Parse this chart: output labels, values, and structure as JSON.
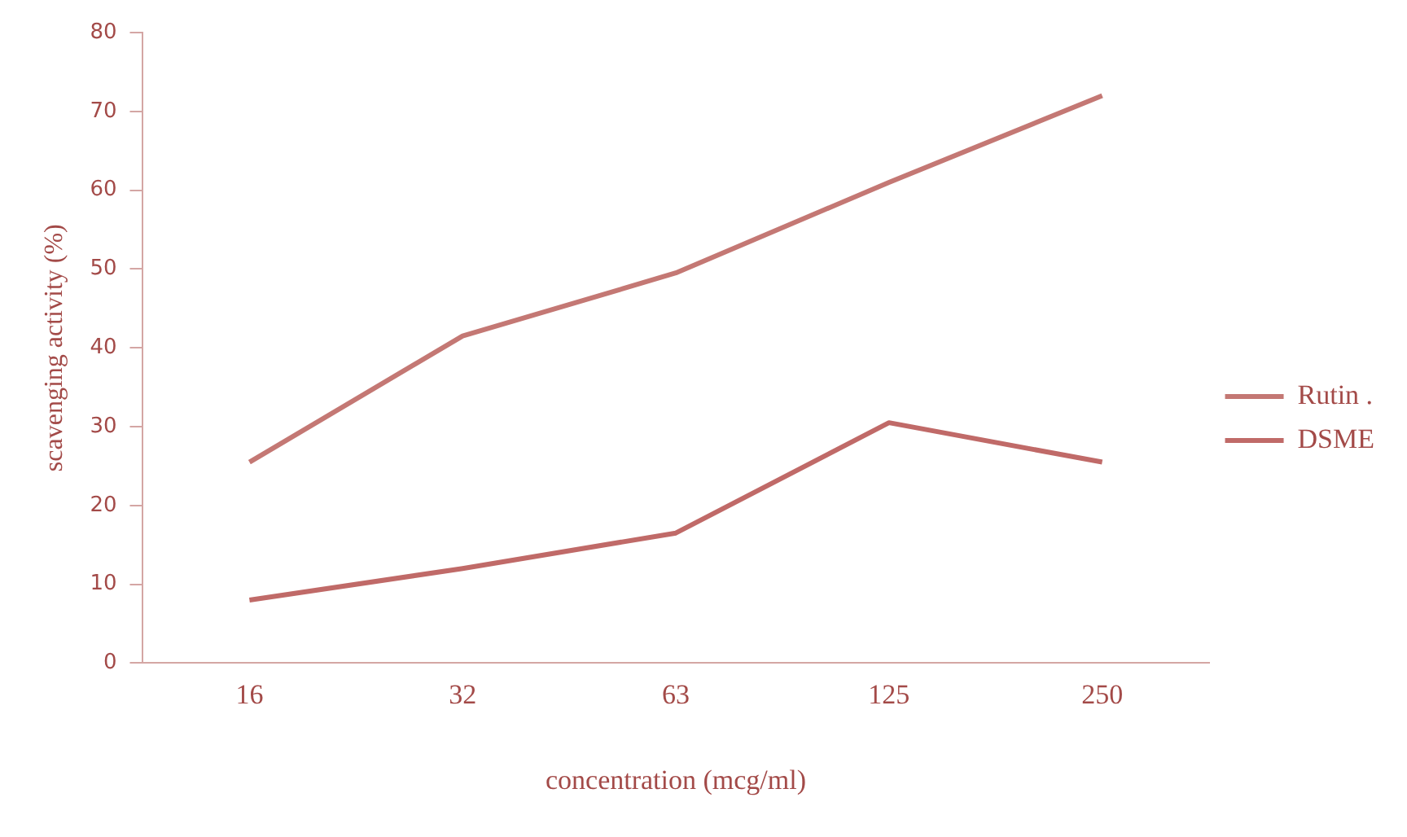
{
  "chart_data": {
    "type": "line",
    "xlabel": "concentration (mcg/ml)",
    "ylabel": "scavenging activity (%)",
    "categories": [
      "16",
      "32",
      "63",
      "125",
      "250"
    ],
    "series": [
      {
        "name": "Rutin .",
        "color": "#c47874",
        "values": [
          25.5,
          41.5,
          49.5,
          61,
          72
        ]
      },
      {
        "name": "DSME",
        "color": "#c06a68",
        "values": [
          8,
          12,
          16.5,
          30.5,
          25.5
        ]
      }
    ],
    "ylim": [
      0,
      80
    ],
    "yticks": [
      0,
      10,
      20,
      30,
      40,
      50,
      60,
      70,
      80
    ],
    "grid": false,
    "legend": "right",
    "marker": "none",
    "line_style": "solid"
  }
}
